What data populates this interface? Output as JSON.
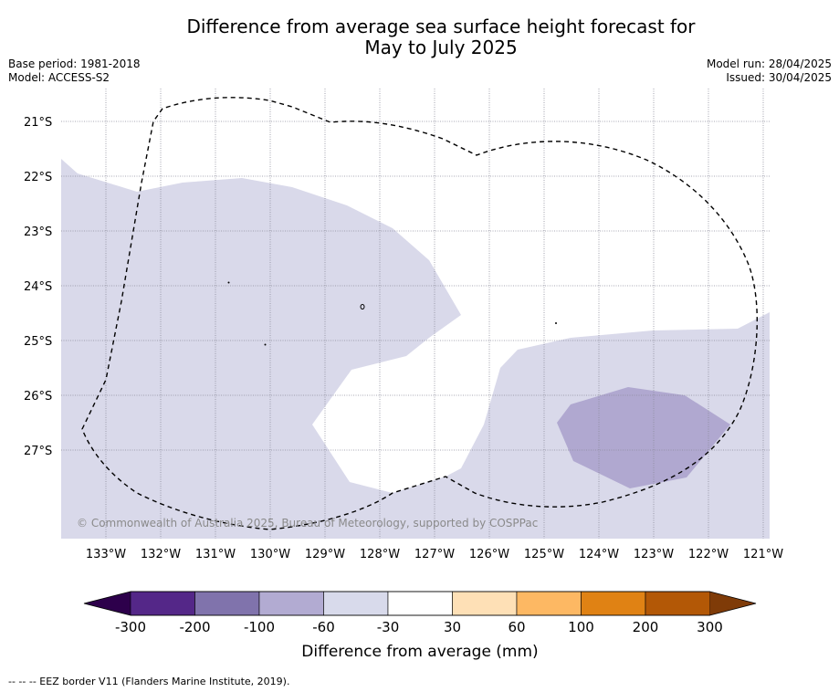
{
  "header": {
    "title_line1": "Difference from average sea surface height forecast for",
    "title_line2": "May to July 2025",
    "base_period": "Base period: 1981-2018",
    "model": "Model: ACCESS-S2",
    "model_run": "Model run: 28/04/2025",
    "issued": "Issued: 30/04/2025"
  },
  "map": {
    "lat_labels": [
      "21°S",
      "22°S",
      "23°S",
      "24°S",
      "25°S",
      "26°S",
      "27°S"
    ],
    "lon_labels": [
      "133°W",
      "132°W",
      "131°W",
      "130°W",
      "129°W",
      "128°W",
      "127°W",
      "126°W",
      "125°W",
      "124°W",
      "123°W",
      "122°W",
      "121°W"
    ],
    "copyright": "© Commonwealth of Australia 2025, Bureau of Meteorology, supported by COSPPac",
    "colors": {
      "anomaly_minus_60_to_minus_30": "#d9d9ea",
      "anomaly_minus_100_to_minus_60": "#b0a8d0",
      "eez_border": "#000000"
    }
  },
  "colorbar": {
    "title": "Difference from average (mm)",
    "ticks": [
      "-300",
      "-200",
      "-100",
      "-60",
      "-30",
      "30",
      "60",
      "100",
      "200",
      "300"
    ],
    "colors": [
      "#2d004b",
      "#542788",
      "#8073ac",
      "#b2abd2",
      "#d8daeb",
      "#ffffff",
      "#fee0b6",
      "#fdb863",
      "#e08214",
      "#b35806",
      "#7f3b08"
    ]
  },
  "footer": {
    "legend_text": "-- -- -- EEZ border V11 (Flanders Marine Institute, 2019)."
  }
}
